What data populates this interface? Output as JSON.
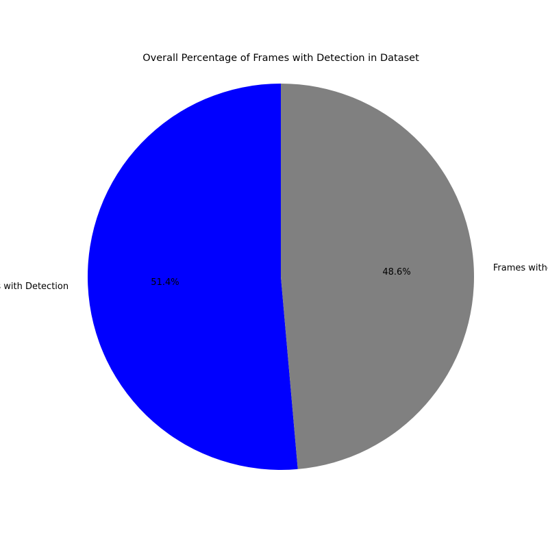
{
  "chart_data": {
    "type": "pie",
    "title": "Overall Percentage of Frames with Detection in Dataset",
    "slices": [
      {
        "label": "Frames with Detection",
        "value": 51.4,
        "pct_text": "51.4%",
        "color": "#0000ff"
      },
      {
        "label": "Frames without Detection",
        "value": 48.6,
        "pct_text": "48.6%",
        "color": "#808080"
      }
    ],
    "start_angle_deg": 90,
    "direction": "counterclockwise"
  }
}
